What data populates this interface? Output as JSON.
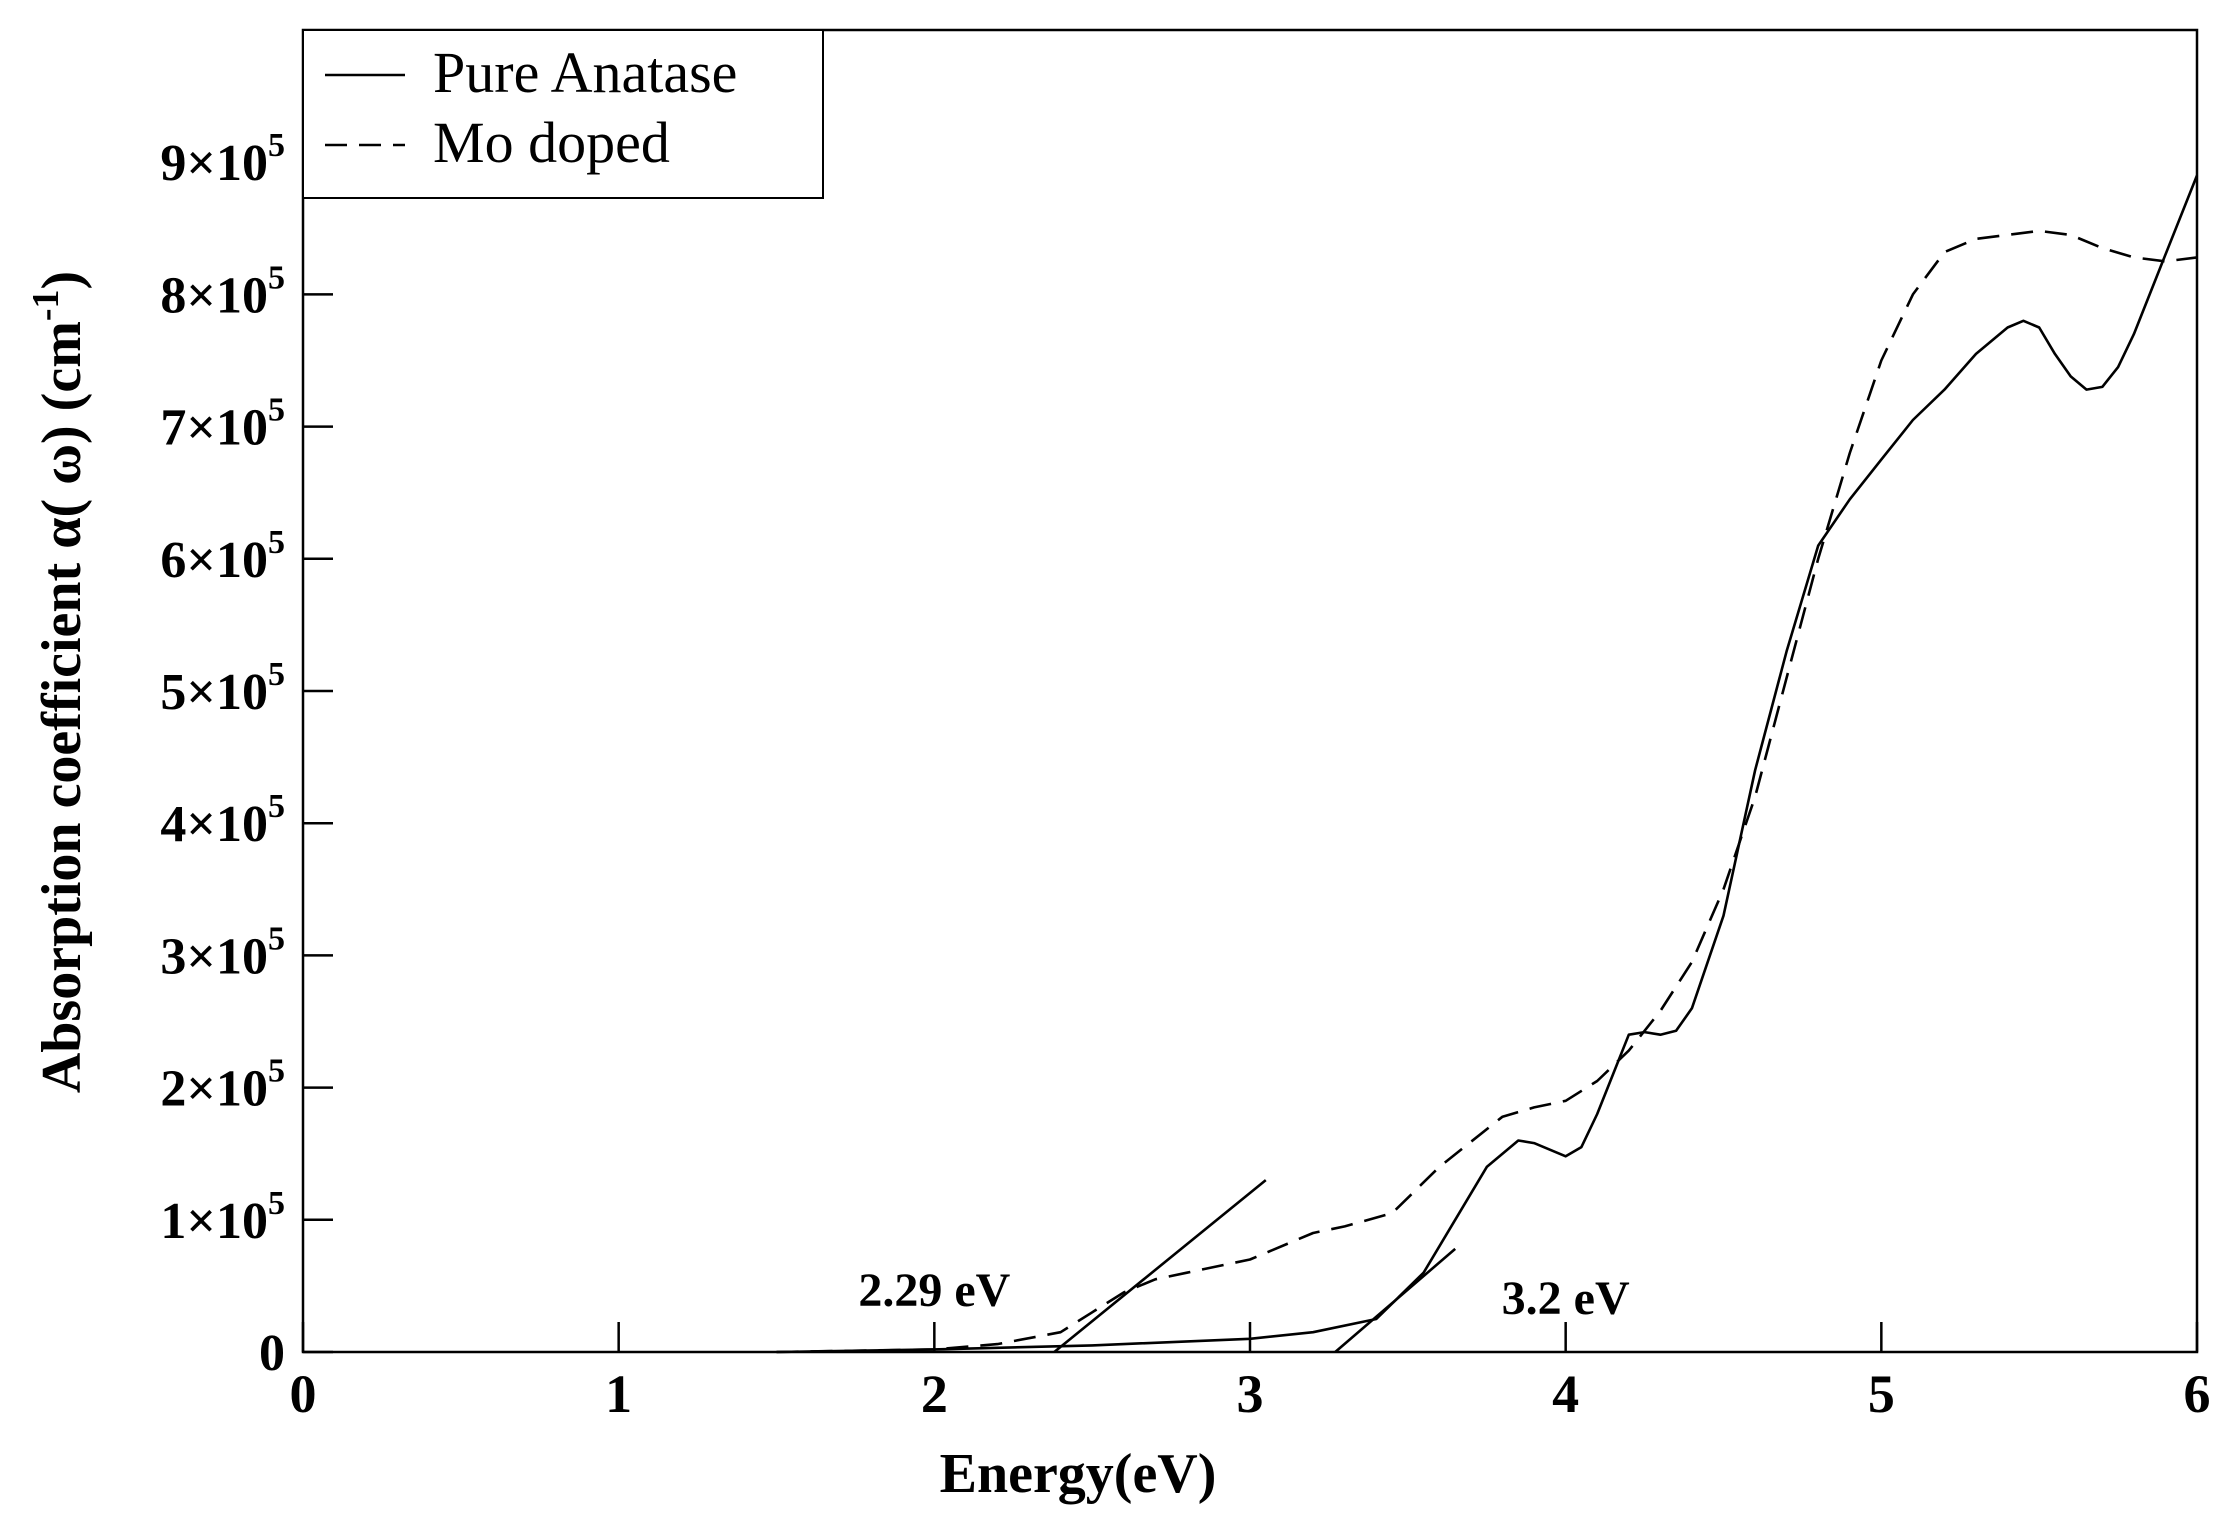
{
  "chart_data": {
    "type": "line",
    "title": "",
    "xlabel": "Energy(eV)",
    "ylabel": "Absorption coefficient  α( ω) (cm",
    "ylabel_sup": "-1",
    "ylabel_close": ")",
    "xlim": [
      0,
      6
    ],
    "ylim": [
      0,
      1000000
    ],
    "grid": false,
    "legend_position": "top-left",
    "x_ticks": [
      {
        "value": 0,
        "label": "0"
      },
      {
        "value": 1,
        "label": "1"
      },
      {
        "value": 2,
        "label": "2"
      },
      {
        "value": 3,
        "label": "3"
      },
      {
        "value": 4,
        "label": "4"
      },
      {
        "value": 5,
        "label": "5"
      },
      {
        "value": 6,
        "label": "6"
      }
    ],
    "y_ticks": [
      {
        "value": 0,
        "label": "0",
        "mantissa": "",
        "exponent": ""
      },
      {
        "value": 100000,
        "label": "1×10^5",
        "mantissa": "1×10",
        "exponent": "5"
      },
      {
        "value": 200000,
        "label": "2×10^5",
        "mantissa": "2×10",
        "exponent": "5"
      },
      {
        "value": 300000,
        "label": "3×10^5",
        "mantissa": "3×10",
        "exponent": "5"
      },
      {
        "value": 400000,
        "label": "4×10^5",
        "mantissa": "4×10",
        "exponent": "5"
      },
      {
        "value": 500000,
        "label": "5×10^5",
        "mantissa": "5×10",
        "exponent": "5"
      },
      {
        "value": 600000,
        "label": "6×10^5",
        "mantissa": "6×10",
        "exponent": "5"
      },
      {
        "value": 700000,
        "label": "7×10^5",
        "mantissa": "7×10",
        "exponent": "5"
      },
      {
        "value": 800000,
        "label": "8×10^5",
        "mantissa": "8×10",
        "exponent": "5"
      },
      {
        "value": 900000,
        "label": "9×10^5",
        "mantissa": "9×10",
        "exponent": "5"
      }
    ],
    "series": [
      {
        "name": "Pure Anatase",
        "style": "solid",
        "color": "#000000",
        "x": [
          1.5,
          2.0,
          2.5,
          3.0,
          3.2,
          3.4,
          3.55,
          3.65,
          3.75,
          3.85,
          3.9,
          4.0,
          4.05,
          4.1,
          4.15,
          4.2,
          4.25,
          4.3,
          4.35,
          4.4,
          4.5,
          4.6,
          4.7,
          4.8,
          4.9,
          5.0,
          5.1,
          5.2,
          5.3,
          5.4,
          5.45,
          5.5,
          5.55,
          5.6,
          5.65,
          5.7,
          5.75,
          5.8,
          5.9,
          6.0
        ],
        "y": [
          0,
          2000,
          5000,
          10000,
          15000,
          25000,
          60000,
          100000,
          140000,
          160000,
          158000,
          148000,
          155000,
          180000,
          210000,
          240000,
          242000,
          240000,
          243000,
          260000,
          330000,
          440000,
          530000,
          610000,
          645000,
          675000,
          705000,
          728000,
          755000,
          775000,
          780000,
          775000,
          755000,
          738000,
          728000,
          730000,
          745000,
          770000,
          830000,
          890000
        ]
      },
      {
        "name": "Mo doped",
        "style": "dashed",
        "color": "#000000",
        "x": [
          1.5,
          2.0,
          2.2,
          2.4,
          2.5,
          2.6,
          2.7,
          2.8,
          3.0,
          3.2,
          3.3,
          3.45,
          3.6,
          3.8,
          3.9,
          4.0,
          4.1,
          4.2,
          4.3,
          4.4,
          4.5,
          4.6,
          4.7,
          4.8,
          4.9,
          5.0,
          5.1,
          5.2,
          5.3,
          5.4,
          5.5,
          5.6,
          5.7,
          5.8,
          5.9,
          6.0
        ],
        "y": [
          0,
          2000,
          6000,
          15000,
          30000,
          45000,
          55000,
          60000,
          70000,
          90000,
          95000,
          105000,
          140000,
          178000,
          185000,
          190000,
          205000,
          228000,
          258000,
          295000,
          350000,
          420000,
          510000,
          600000,
          680000,
          750000,
          800000,
          832000,
          842000,
          845000,
          848000,
          845000,
          835000,
          828000,
          825000,
          828000
        ]
      }
    ],
    "tangent_lines": [
      {
        "name": "tangent-mo-doped",
        "x": [
          2.38,
          3.05
        ],
        "y": [
          0,
          130000
        ]
      },
      {
        "name": "tangent-pure-anatase",
        "x": [
          3.27,
          3.65
        ],
        "y": [
          0,
          78000
        ]
      }
    ],
    "annotations": [
      {
        "text": "2.29 eV",
        "x": 2.0,
        "y": 50000
      },
      {
        "text": "3.2 eV",
        "x": 4.0,
        "y": 44000
      }
    ]
  }
}
